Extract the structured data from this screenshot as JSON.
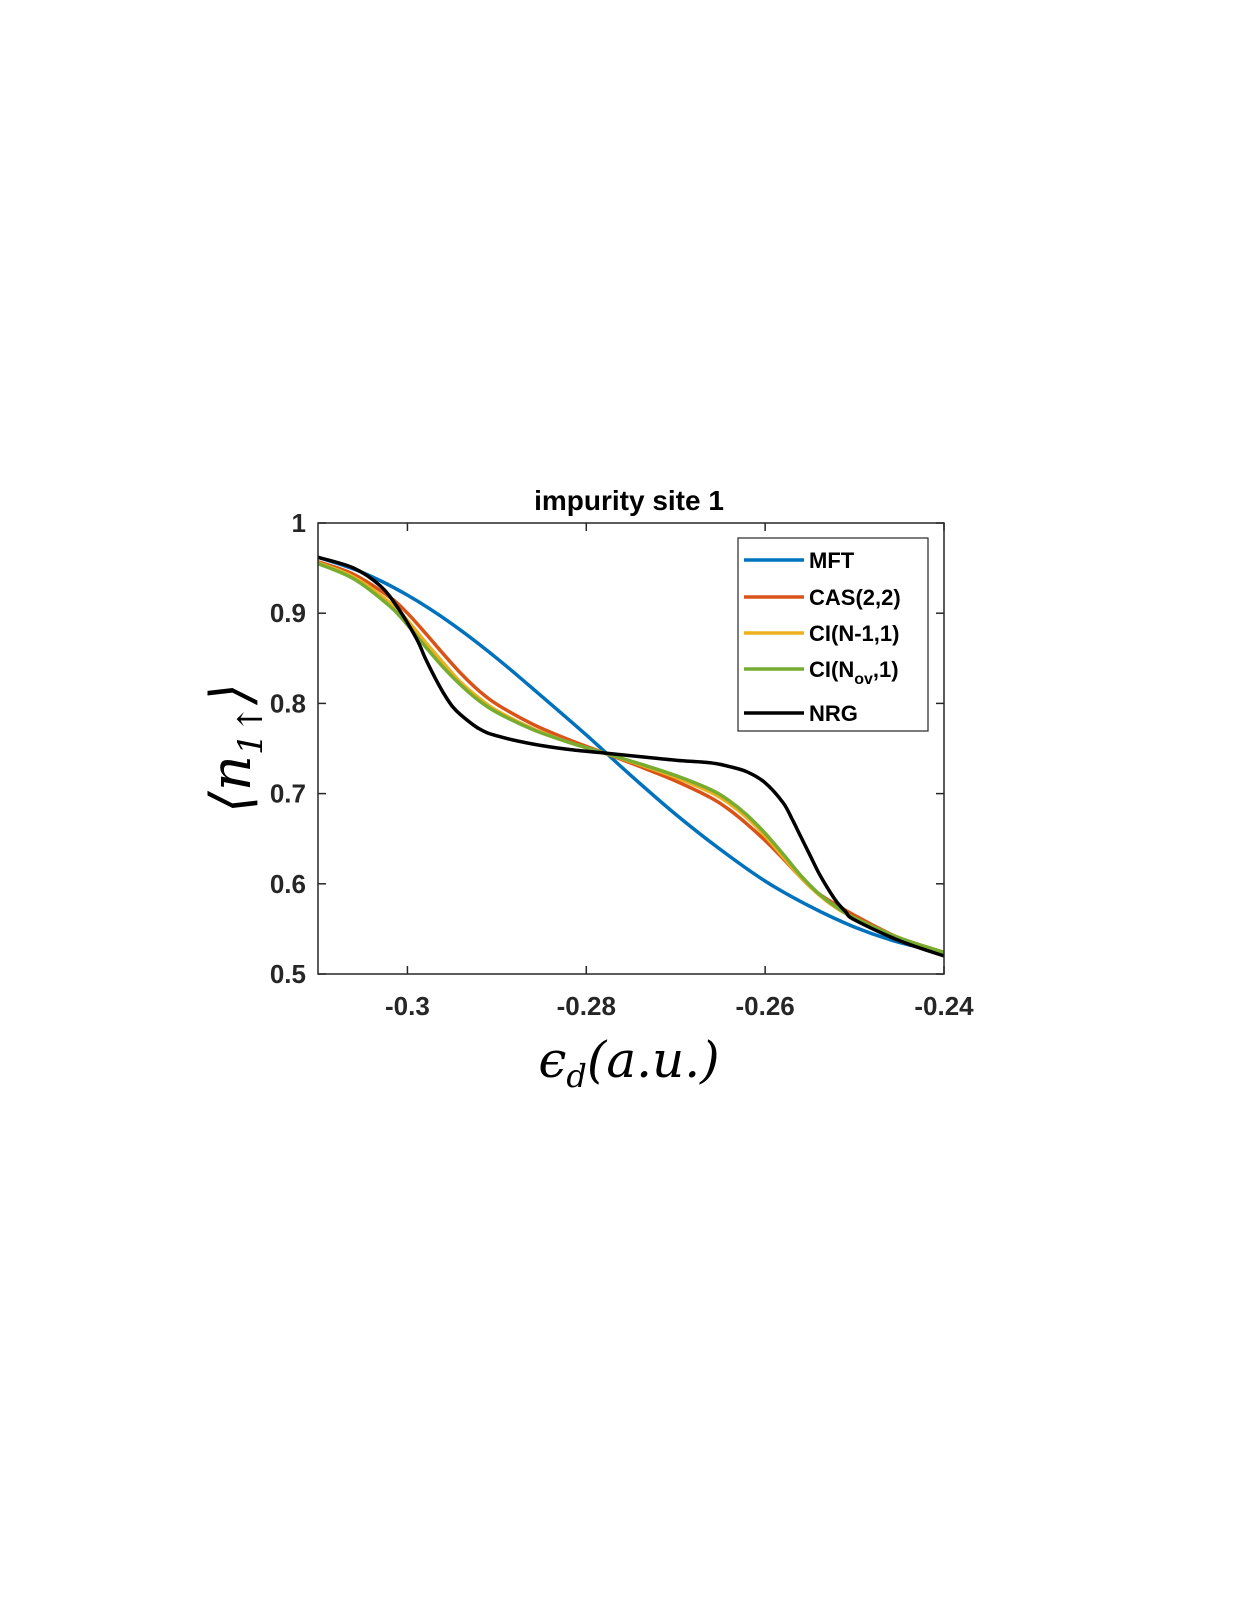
{
  "chart_data": {
    "type": "line",
    "title": "impurity site 1",
    "xlim": [
      -0.31,
      -0.24
    ],
    "ylim": [
      0.5,
      1.0
    ],
    "xticks": [
      -0.3,
      -0.28,
      -0.26,
      -0.24
    ],
    "xtick_labels": [
      "-0.3",
      "-0.28",
      "-0.26",
      "-0.24"
    ],
    "yticks": [
      0.5,
      0.6,
      0.7,
      0.8,
      0.9,
      1.0
    ],
    "ytick_labels": [
      "0.5",
      "0.6",
      "0.7",
      "0.8",
      "0.9",
      "1"
    ],
    "xlabel": {
      "symbol": "ϵ",
      "subscript": "d",
      "units": "(a.u.)"
    },
    "ylabel": {
      "open": "⟨",
      "symbol": "n",
      "subscript": "1↑",
      "close": "⟩"
    },
    "grid": false,
    "legend_position": "top-right",
    "series": [
      {
        "name": "MFT",
        "color": "#0072BD",
        "x": [
          -0.31,
          -0.305,
          -0.3,
          -0.295,
          -0.29,
          -0.285,
          -0.28,
          -0.275,
          -0.27,
          -0.265,
          -0.26,
          -0.255,
          -0.25,
          -0.245,
          -0.24
        ],
        "y": [
          0.962,
          0.945,
          0.92,
          0.888,
          0.85,
          0.808,
          0.765,
          0.72,
          0.677,
          0.638,
          0.603,
          0.575,
          0.552,
          0.535,
          0.524
        ]
      },
      {
        "name": "CAS(2,2)",
        "color": "#D95319",
        "x": [
          -0.31,
          -0.306,
          -0.302,
          -0.3,
          -0.298,
          -0.296,
          -0.294,
          -0.292,
          -0.29,
          -0.286,
          -0.282,
          -0.278,
          -0.274,
          -0.27,
          -0.266,
          -0.264,
          -0.262,
          -0.26,
          -0.258,
          -0.256,
          -0.254,
          -0.25,
          -0.245,
          -0.24
        ],
        "y": [
          0.957,
          0.943,
          0.918,
          0.9,
          0.878,
          0.855,
          0.833,
          0.814,
          0.799,
          0.777,
          0.76,
          0.745,
          0.73,
          0.714,
          0.695,
          0.682,
          0.666,
          0.648,
          0.628,
          0.607,
          0.589,
          0.565,
          0.54,
          0.524
        ]
      },
      {
        "name": "CI(N-1,1)",
        "color": "#EDB120",
        "x": [
          -0.31,
          -0.306,
          -0.302,
          -0.3,
          -0.298,
          -0.296,
          -0.294,
          -0.292,
          -0.29,
          -0.286,
          -0.282,
          -0.278,
          -0.274,
          -0.27,
          -0.266,
          -0.264,
          -0.262,
          -0.26,
          -0.258,
          -0.256,
          -0.254,
          -0.252,
          -0.25,
          -0.245,
          -0.24
        ],
        "y": [
          0.956,
          0.94,
          0.912,
          0.892,
          0.868,
          0.845,
          0.823,
          0.806,
          0.792,
          0.772,
          0.757,
          0.745,
          0.732,
          0.718,
          0.701,
          0.689,
          0.673,
          0.653,
          0.63,
          0.607,
          0.588,
          0.573,
          0.562,
          0.54,
          0.524
        ]
      },
      {
        "name": "CI(N_ov,1)",
        "color": "#77AC30",
        "x": [
          -0.31,
          -0.306,
          -0.302,
          -0.3,
          -0.298,
          -0.296,
          -0.294,
          -0.292,
          -0.29,
          -0.286,
          -0.282,
          -0.278,
          -0.274,
          -0.27,
          -0.266,
          -0.264,
          -0.262,
          -0.26,
          -0.258,
          -0.256,
          -0.254,
          -0.252,
          -0.25,
          -0.245,
          -0.24
        ],
        "y": [
          0.955,
          0.938,
          0.908,
          0.887,
          0.863,
          0.84,
          0.82,
          0.803,
          0.79,
          0.771,
          0.757,
          0.745,
          0.733,
          0.72,
          0.704,
          0.692,
          0.676,
          0.656,
          0.633,
          0.609,
          0.589,
          0.574,
          0.562,
          0.54,
          0.524
        ]
      },
      {
        "name": "NRG",
        "color": "#000000",
        "x": [
          -0.31,
          -0.306,
          -0.303,
          -0.301,
          -0.299,
          -0.298,
          -0.297,
          -0.296,
          -0.295,
          -0.294,
          -0.292,
          -0.29,
          -0.286,
          -0.282,
          -0.278,
          -0.274,
          -0.27,
          -0.266,
          -0.264,
          -0.262,
          -0.26,
          -0.258,
          -0.257,
          -0.256,
          -0.255,
          -0.254,
          -0.253,
          -0.252,
          -0.251,
          -0.25,
          -0.245,
          -0.24
        ],
        "y": [
          0.962,
          0.95,
          0.93,
          0.905,
          0.872,
          0.85,
          0.83,
          0.812,
          0.797,
          0.787,
          0.772,
          0.764,
          0.755,
          0.749,
          0.745,
          0.741,
          0.737,
          0.734,
          0.73,
          0.724,
          0.712,
          0.69,
          0.672,
          0.652,
          0.632,
          0.612,
          0.595,
          0.58,
          0.569,
          0.56,
          0.537,
          0.52
        ]
      }
    ],
    "legend_entries": [
      {
        "base": "MFT",
        "sub": "",
        "tail": ""
      },
      {
        "base": "CAS(2,2)",
        "sub": "",
        "tail": ""
      },
      {
        "base": "CI(N-1,1)",
        "sub": "",
        "tail": ""
      },
      {
        "base": "CI(N",
        "sub": "ov",
        "tail": ",1)"
      },
      {
        "base": "NRG",
        "sub": "",
        "tail": ""
      }
    ]
  }
}
